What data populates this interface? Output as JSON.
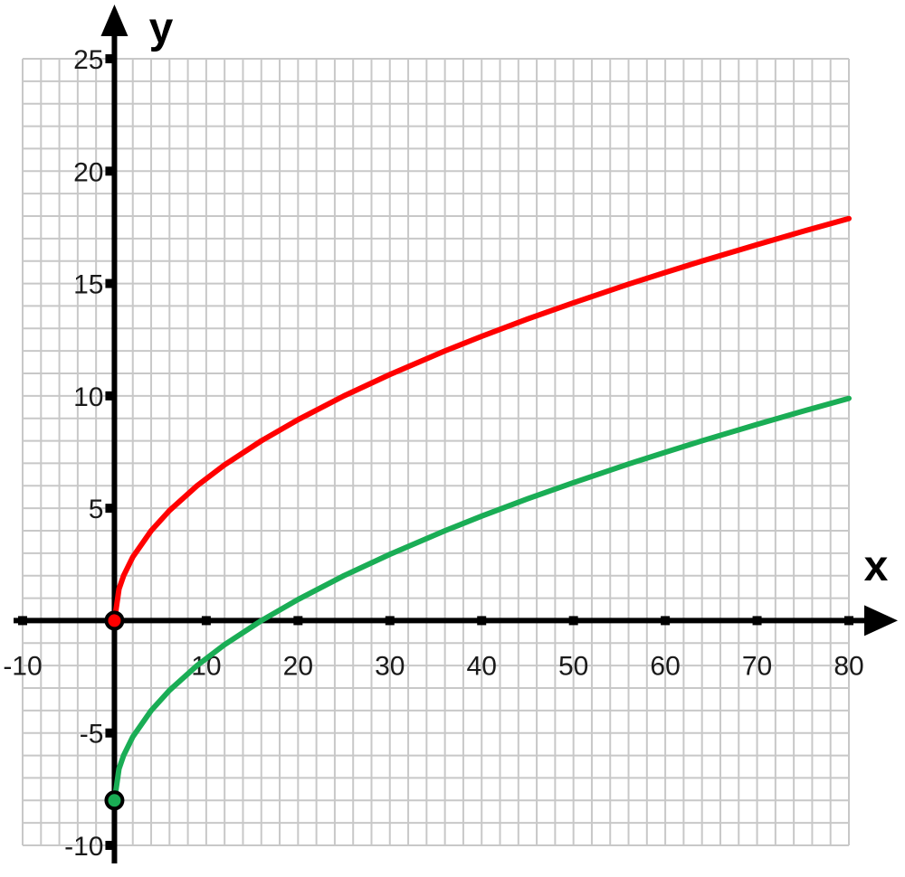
{
  "chart_data": {
    "type": "line",
    "xlabel": "x",
    "ylabel": "y",
    "xlim": [
      -10,
      80
    ],
    "ylim": [
      -10,
      25
    ],
    "grid": true,
    "x_minor_step": 2,
    "y_minor_step": 1,
    "x_ticks": [
      -10,
      10,
      20,
      30,
      40,
      50,
      60,
      70,
      80
    ],
    "x_tick_labels": [
      "-10",
      "10",
      "20",
      "30",
      "40",
      "50",
      "60",
      "70",
      "80"
    ],
    "y_ticks": [
      -10,
      -5,
      5,
      10,
      15,
      20,
      25
    ],
    "y_tick_labels": [
      "-10",
      "-5",
      "5",
      "10",
      "15",
      "20",
      "25"
    ],
    "colors": {
      "grid": "#c8c8c8",
      "axes": "#000000",
      "red": "#ff0000",
      "green": "#1aad55"
    },
    "series": [
      {
        "color": "#ff0000",
        "start_point": [
          0,
          0
        ],
        "x": [
          0,
          0.5,
          1,
          2,
          4,
          6,
          9,
          12,
          16,
          20,
          25,
          30,
          36,
          40,
          45,
          50,
          56,
          60,
          64,
          70,
          75,
          80
        ],
        "y": [
          0,
          1.41,
          2,
          2.83,
          4,
          4.9,
          6,
          6.93,
          8,
          8.94,
          10,
          10.95,
          12,
          12.65,
          13.42,
          14.14,
          14.97,
          15.49,
          16,
          16.73,
          17.32,
          17.89
        ]
      },
      {
        "color": "#1aad55",
        "start_point": [
          0,
          -8
        ],
        "x": [
          0,
          0.5,
          1,
          2,
          4,
          6,
          9,
          12,
          16,
          20,
          25,
          30,
          36,
          40,
          45,
          50,
          56,
          60,
          64,
          70,
          75,
          80
        ],
        "y": [
          -8,
          -6.59,
          -6,
          -5.17,
          -4,
          -3.1,
          -2,
          -1.07,
          0,
          0.94,
          2,
          2.95,
          4,
          4.65,
          5.42,
          6.14,
          6.97,
          7.49,
          8,
          8.73,
          9.32,
          9.89
        ]
      }
    ]
  }
}
